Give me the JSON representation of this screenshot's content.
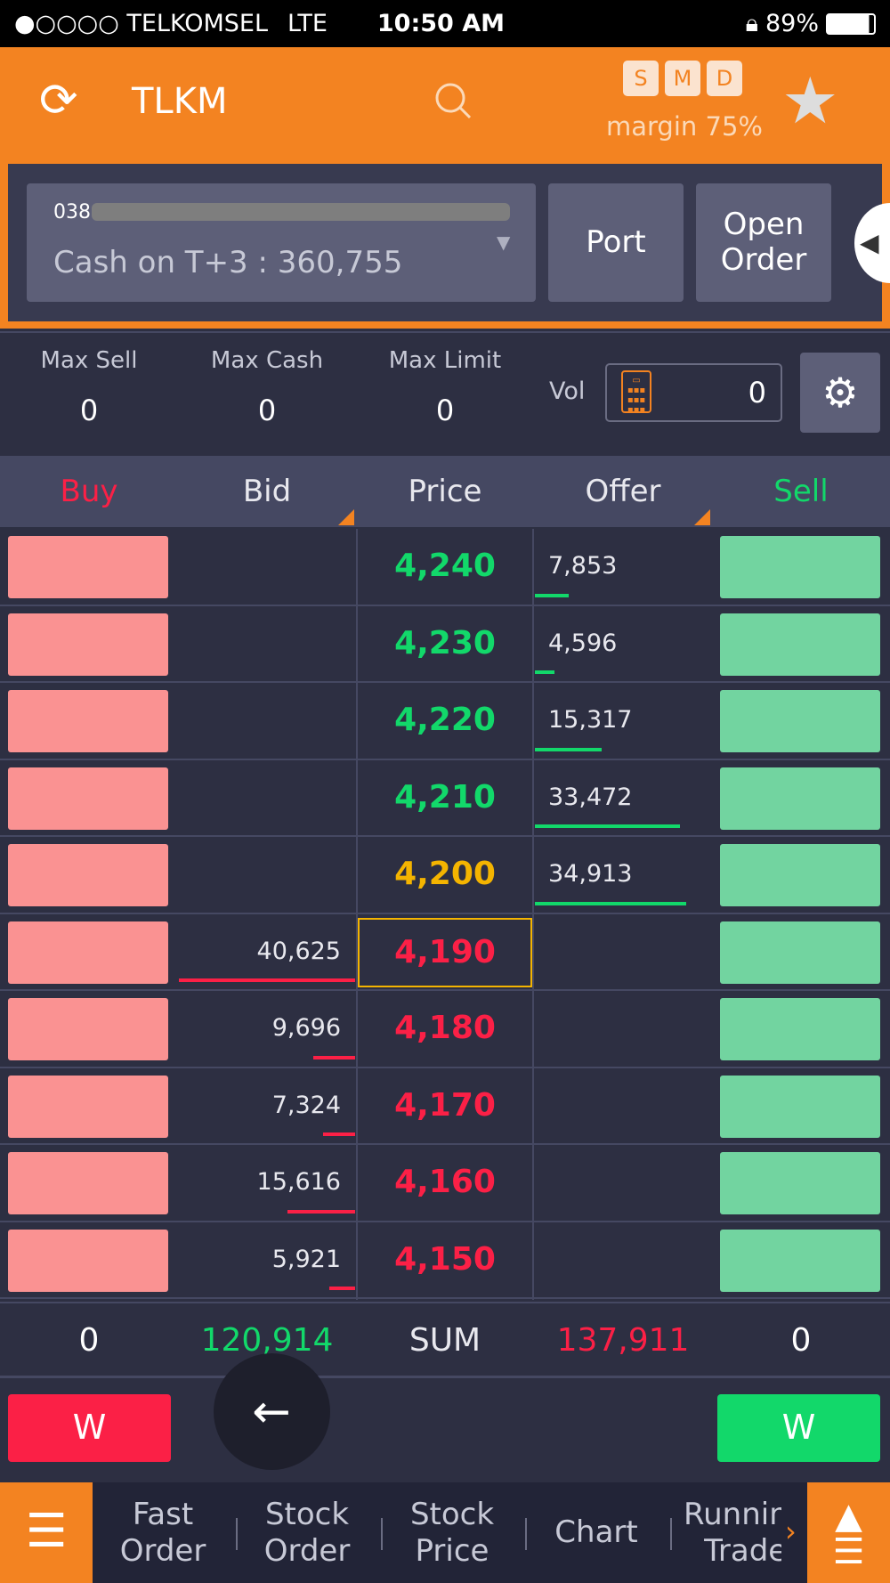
{
  "status_bar": {
    "carrier": "●○○○○ TELKOMSEL",
    "network": "LTE",
    "time": "10:50 AM",
    "battery": "89%"
  },
  "header": {
    "symbol": "TLKM",
    "badges": [
      "S",
      "M",
      "D"
    ],
    "margin": "margin 75%"
  },
  "account": {
    "number": "038",
    "cash": "Cash on T+3 : 360,755",
    "port": "Port",
    "open_order": "Open\nOrder"
  },
  "stats": {
    "max_sell_label": "Max Sell",
    "max_sell": "0",
    "max_cash_label": "Max Cash",
    "max_cash": "0",
    "max_limit_label": "Max Limit",
    "max_limit": "0",
    "vol_label": "Vol",
    "vol": "0"
  },
  "columns": {
    "buy": "Buy",
    "bid": "Bid",
    "price": "Price",
    "offer": "Offer",
    "sell": "Sell"
  },
  "book": [
    {
      "price": "4,240",
      "price_color": "#12d86a",
      "bid": "",
      "offer": "7,853",
      "offer_vol": 7853,
      "bid_vol": 0
    },
    {
      "price": "4,230",
      "price_color": "#12d86a",
      "bid": "",
      "offer": "4,596",
      "offer_vol": 4596,
      "bid_vol": 0
    },
    {
      "price": "4,220",
      "price_color": "#12d86a",
      "bid": "",
      "offer": "15,317",
      "offer_vol": 15317,
      "bid_vol": 0
    },
    {
      "price": "4,210",
      "price_color": "#12d86a",
      "bid": "",
      "offer": "33,472",
      "offer_vol": 33472,
      "bid_vol": 0
    },
    {
      "price": "4,200",
      "price_color": "#f4b400",
      "bid": "",
      "offer": "34,913",
      "offer_vol": 34913,
      "bid_vol": 0
    },
    {
      "price": "4,190",
      "price_color": "#fb2046",
      "bid": "40,625",
      "offer": "",
      "offer_vol": 0,
      "bid_vol": 40625,
      "selected": true
    },
    {
      "price": "4,180",
      "price_color": "#fb2046",
      "bid": "9,696",
      "offer": "",
      "offer_vol": 0,
      "bid_vol": 9696
    },
    {
      "price": "4,170",
      "price_color": "#fb2046",
      "bid": "7,324",
      "offer": "",
      "offer_vol": 0,
      "bid_vol": 7324
    },
    {
      "price": "4,160",
      "price_color": "#fb2046",
      "bid": "15,616",
      "offer": "",
      "offer_vol": 0,
      "bid_vol": 15616
    },
    {
      "price": "4,150",
      "price_color": "#fb2046",
      "bid": "5,921",
      "offer": "",
      "offer_vol": 0,
      "bid_vol": 5921
    }
  ],
  "sum": {
    "buy": "0",
    "bid": "120,914",
    "label": "SUM",
    "offer": "137,911",
    "sell": "0"
  },
  "actions": {
    "buy_w": "W",
    "sell_w": "W"
  },
  "nav": {
    "items": [
      "Fast\nOrder",
      "Stock\nOrder",
      "Stock\nPrice",
      "Chart",
      "Running\nTrade"
    ]
  }
}
